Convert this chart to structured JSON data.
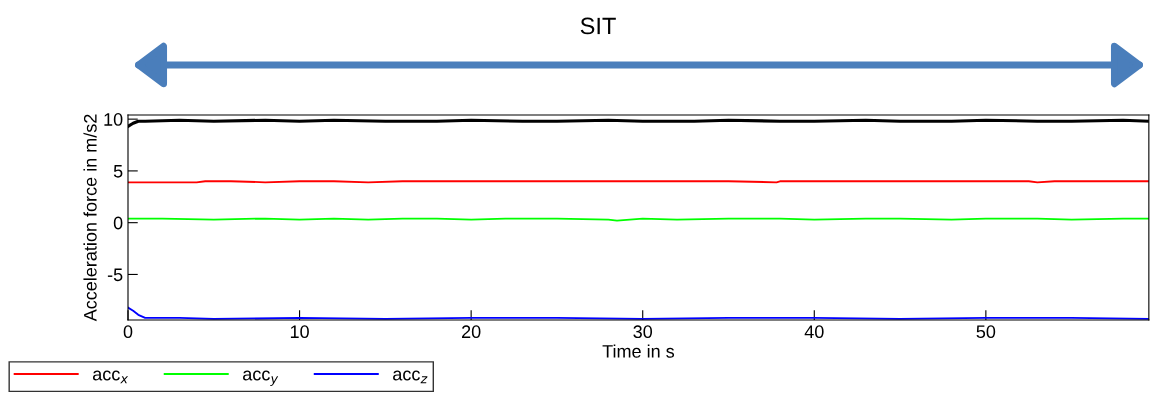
{
  "chart_data": {
    "type": "line",
    "xlabel": "Time in s",
    "ylabel": "Acceleration force in m/s2",
    "annotations": [
      "SIT"
    ],
    "xlim": [
      0,
      59.5
    ],
    "ylim": [
      -9.4,
      10.4
    ],
    "xticks": [
      0,
      10,
      20,
      30,
      40,
      50
    ],
    "yticks": [
      -5,
      0,
      5,
      10
    ],
    "grid": false,
    "legend": "bottom left",
    "marker": "none",
    "line_style": "solid",
    "series": [
      {
        "color": "#000000",
        "x": [
          0,
          0.3,
          0.6,
          1,
          3,
          5,
          8,
          10,
          12,
          15,
          18,
          20,
          23,
          25,
          28,
          30,
          33,
          35,
          38,
          40,
          43,
          45,
          48,
          50,
          53,
          55,
          58,
          59.5
        ],
        "values": [
          9.3,
          9.6,
          9.8,
          9.8,
          9.9,
          9.8,
          9.9,
          9.8,
          9.9,
          9.8,
          9.8,
          9.9,
          9.8,
          9.8,
          9.9,
          9.8,
          9.8,
          9.9,
          9.8,
          9.8,
          9.9,
          9.8,
          9.8,
          9.9,
          9.8,
          9.8,
          9.9,
          9.8
        ]
      },
      {
        "name": "acc$_{x}$",
        "color": "#ff0000",
        "x": [
          0,
          4,
          4.5,
          6,
          8,
          10,
          12,
          14,
          16,
          18,
          20,
          25,
          30,
          35,
          37.8,
          38,
          40,
          45,
          52.5,
          53,
          54,
          57,
          59.5
        ],
        "values": [
          3.9,
          3.9,
          4.0,
          4.0,
          3.9,
          4.0,
          4.0,
          3.9,
          4.0,
          4.0,
          4.0,
          4.0,
          4.0,
          4.0,
          3.9,
          4.0,
          4.0,
          4.0,
          4.0,
          3.9,
          4.0,
          4.0,
          4.0
        ]
      },
      {
        "name": "acc$_{y}$",
        "color": "#00ff00",
        "x": [
          0,
          2,
          5,
          8,
          10,
          12,
          14,
          16,
          18,
          20,
          22,
          25,
          28,
          28.5,
          30,
          32,
          35,
          38,
          40,
          43,
          45,
          48,
          50,
          53,
          55,
          58,
          59.5
        ],
        "values": [
          0.4,
          0.4,
          0.3,
          0.4,
          0.3,
          0.4,
          0.3,
          0.4,
          0.4,
          0.3,
          0.4,
          0.4,
          0.3,
          0.2,
          0.4,
          0.3,
          0.4,
          0.4,
          0.3,
          0.4,
          0.4,
          0.3,
          0.4,
          0.4,
          0.3,
          0.4,
          0.4
        ]
      },
      {
        "name": "acc$_{z}$",
        "color": "#0000ff",
        "x": [
          0,
          0.3,
          0.6,
          1,
          3,
          5,
          10,
          15,
          20,
          25,
          30,
          35,
          40,
          45,
          50,
          55,
          59.5
        ],
        "values": [
          -8.2,
          -8.5,
          -8.9,
          -9.2,
          -9.2,
          -9.3,
          -9.2,
          -9.3,
          -9.2,
          -9.2,
          -9.3,
          -9.2,
          -9.2,
          -9.3,
          -9.2,
          -9.2,
          -9.3
        ]
      }
    ]
  }
}
